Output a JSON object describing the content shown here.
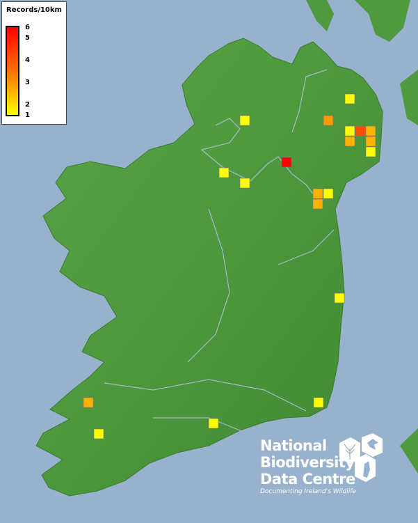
{
  "legend": {
    "title": "Records/10km",
    "ticks": [
      "6",
      "5",
      "4",
      "3",
      "2",
      "1"
    ],
    "tick_values": [
      6,
      5,
      4,
      3,
      2,
      1
    ],
    "color_low": "#ffff00",
    "color_high": "#ff0000"
  },
  "map": {
    "sea_color": "#98b2cd",
    "land_color": "#4f9a3e",
    "records": [
      1,
      1,
      3,
      1,
      4.5,
      2.5,
      2.5,
      2.5,
      1,
      6,
      1,
      1,
      2.5,
      1,
      2.5,
      1,
      2.5,
      1,
      1,
      1
    ]
  },
  "logo": {
    "line1": "National",
    "line2": "Biodiversity",
    "line3": "Data Centre",
    "tagline": "Documenting Ireland's Wildlife"
  }
}
